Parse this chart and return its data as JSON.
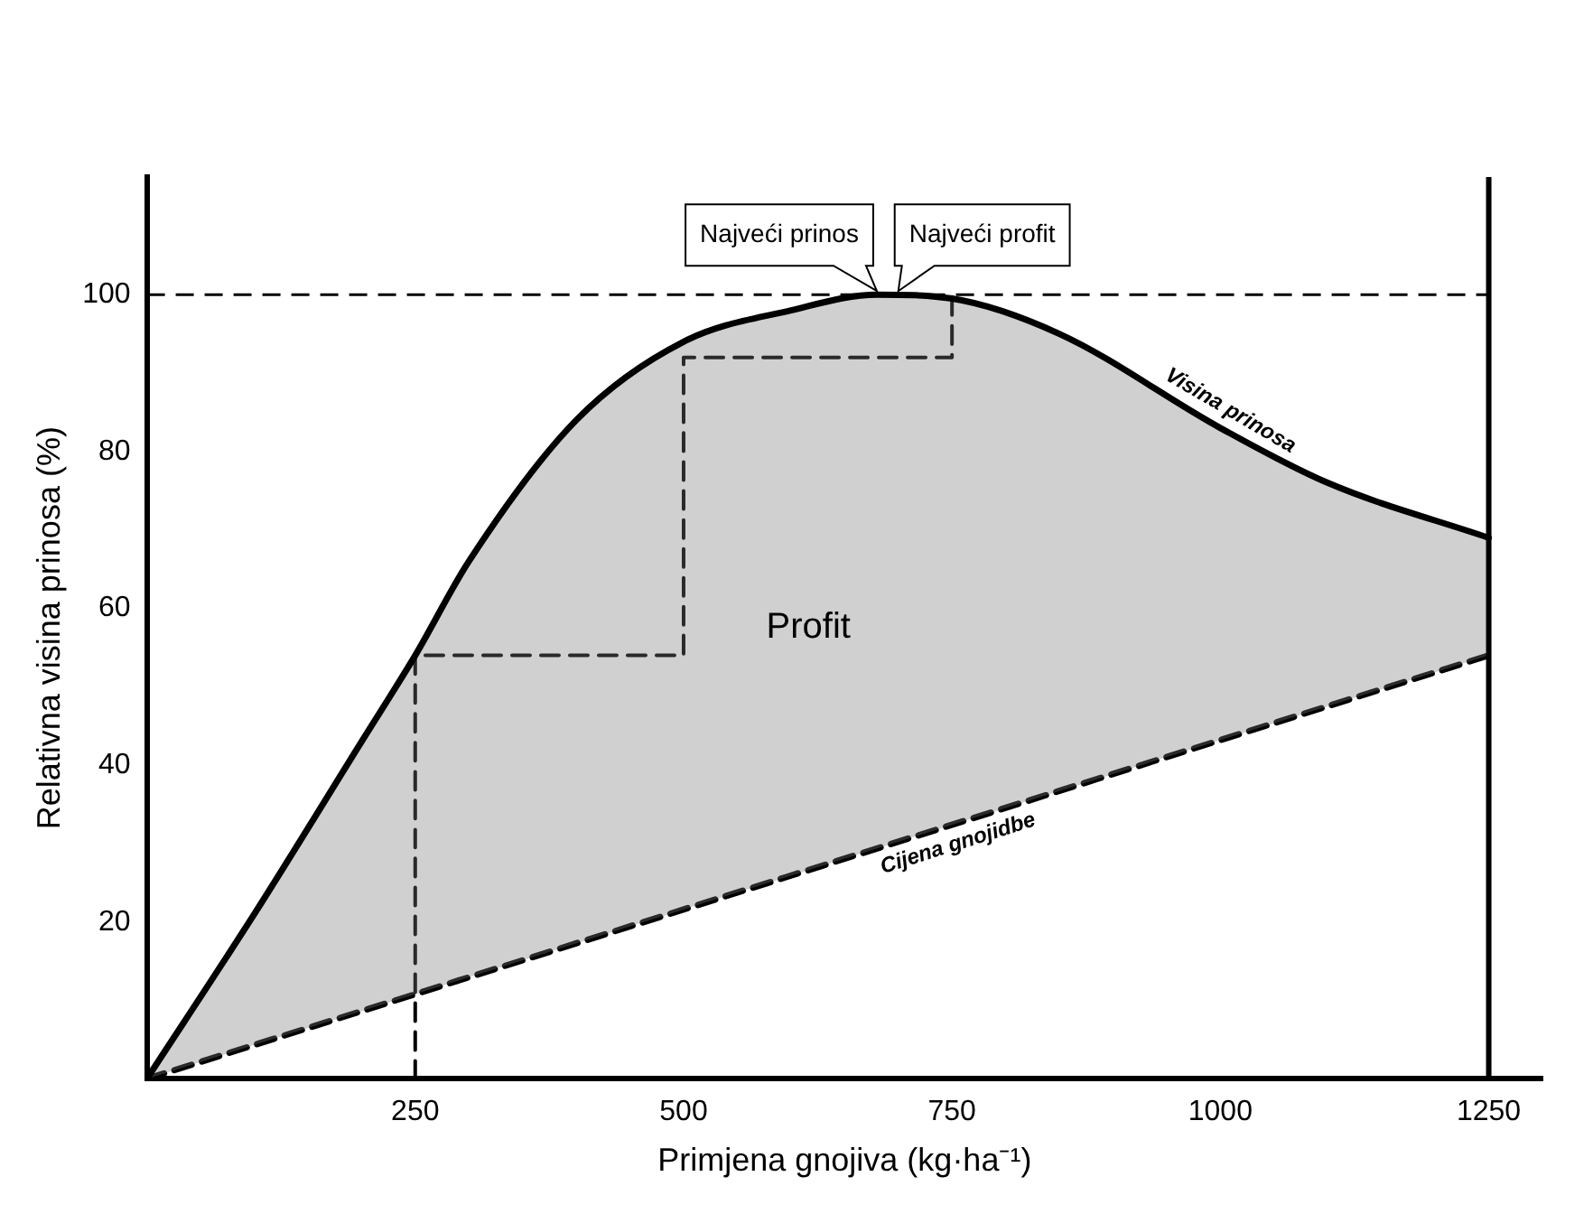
{
  "chart_data": {
    "type": "line",
    "xlabel": "Primjena gnojiva (kg·ha⁻¹)",
    "ylabel": "Relativna visina prinosa (%)",
    "xlim": [
      0,
      1300
    ],
    "xticks": [
      250,
      500,
      750,
      1000,
      1250
    ],
    "ylim": [
      0,
      115
    ],
    "yticks": [
      20,
      40,
      60,
      80,
      100
    ],
    "grid": false,
    "legend": false,
    "marker": "none",
    "series": [
      {
        "name": "Visina prinosa",
        "type": "area",
        "color": "#000000",
        "line_style": "solid",
        "x": [
          0,
          100,
          200,
          250,
          300,
          400,
          500,
          600,
          680,
          750,
          850,
          1000,
          1100,
          1250
        ],
        "values": [
          0,
          21,
          43,
          54,
          66,
          84,
          94,
          98,
          100,
          99.5,
          95,
          83,
          76,
          69
        ]
      },
      {
        "name": "Cijena gnojidbe",
        "type": "line",
        "color": "#000000",
        "line_style": "dashed",
        "x": [
          0,
          1250
        ],
        "values": [
          0,
          54
        ]
      },
      {
        "type": "line",
        "color": "#000000",
        "line_style": "dashed",
        "x": [
          250,
          250,
          500,
          500,
          750,
          750
        ],
        "values": [
          0,
          54,
          54,
          92,
          92,
          100
        ]
      }
    ],
    "ref_lines": [
      {
        "axis": "y",
        "value": 100,
        "line_style": "dashed"
      },
      {
        "axis": "x",
        "value": 1250,
        "line_style": "solid"
      }
    ],
    "annotations": [
      {
        "text": "Najveći prinos",
        "x": 680,
        "y": 100
      },
      {
        "text": "Najveći profit",
        "x": 700,
        "y": 100
      },
      "Profit"
    ]
  }
}
